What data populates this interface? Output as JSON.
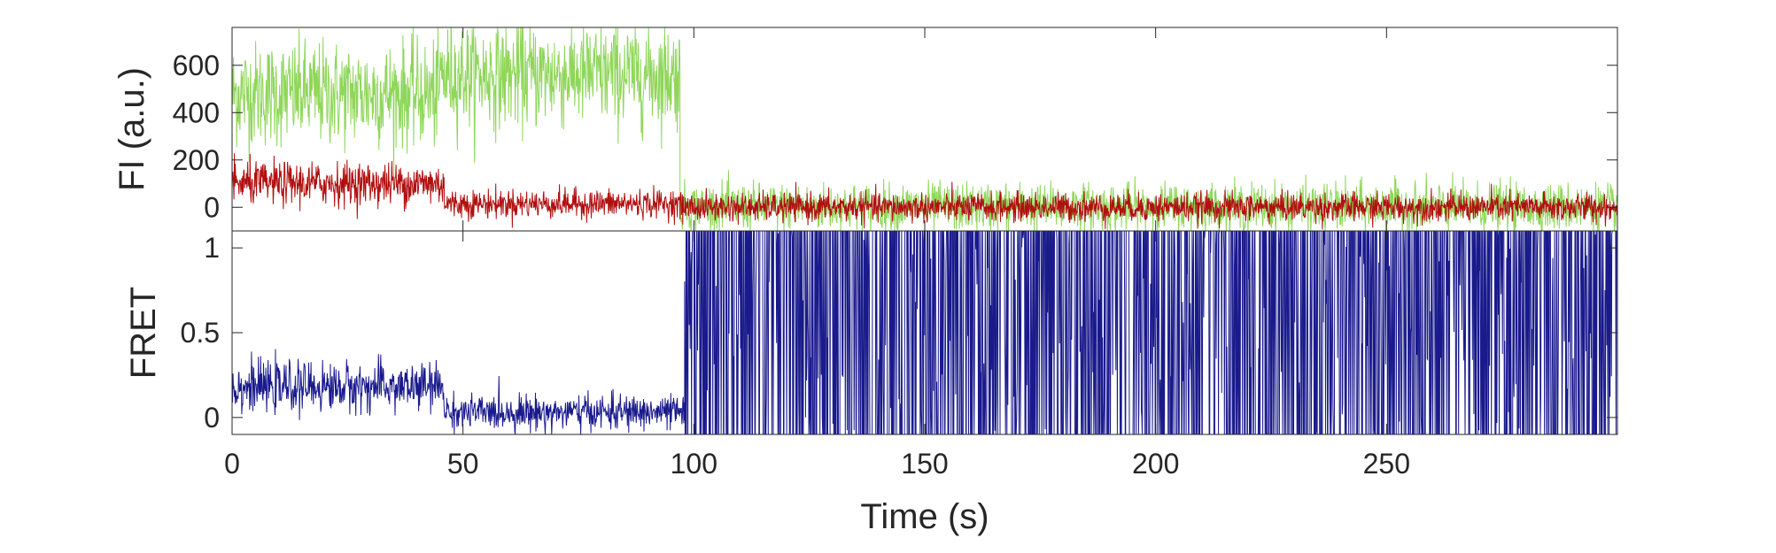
{
  "chart_data": [
    {
      "panel": "top",
      "type": "line",
      "title": "",
      "xlabel": "",
      "ylabel": "FI (a.u.)",
      "xlim": [
        0,
        300
      ],
      "ylim": [
        -100,
        760
      ],
      "yticks": [
        0,
        200,
        400,
        600
      ],
      "ytick_labels": [
        "0",
        "200",
        "400",
        "600"
      ],
      "grid": false,
      "series": [
        {
          "color": "#8fd65a",
          "segments": [
            {
              "x_start": 0,
              "x_end": 45,
              "level": 480,
              "noise": 110
            },
            {
              "x_start": 45,
              "x_end": 97,
              "level": 560,
              "noise": 110
            },
            {
              "x_start": 97,
              "x_end": 300,
              "level": 0,
              "noise": 50
            }
          ]
        },
        {
          "color": "#b01010",
          "segments": [
            {
              "x_start": 0,
              "x_end": 46,
              "level": 100,
              "noise": 45
            },
            {
              "x_start": 46,
              "x_end": 97,
              "level": 15,
              "noise": 30
            },
            {
              "x_start": 97,
              "x_end": 300,
              "level": 0,
              "noise": 30
            }
          ]
        }
      ]
    },
    {
      "panel": "bottom",
      "type": "line",
      "title": "",
      "xlabel": "Time (s)",
      "ylabel": "FRET",
      "xlim": [
        0,
        300
      ],
      "ylim": [
        -0.1,
        1.1
      ],
      "yticks": [
        0,
        0.5,
        1
      ],
      "ytick_labels": [
        "0",
        "0.5",
        "1"
      ],
      "xticks": [
        0,
        50,
        100,
        150,
        200,
        250
      ],
      "xtick_labels": [
        "0",
        "50",
        "100",
        "150",
        "200",
        "250"
      ],
      "grid": false,
      "series": [
        {
          "color": "#1a1a8c",
          "segments": [
            {
              "x_start": 0,
              "x_end": 46,
              "level": 0.18,
              "noise": 0.07
            },
            {
              "x_start": 46,
              "x_end": 98,
              "level": 0.03,
              "noise": 0.05
            },
            {
              "x_start": 98,
              "x_end": 300,
              "level": 0.5,
              "noise": 0.6,
              "saturated": true
            }
          ]
        }
      ]
    }
  ]
}
